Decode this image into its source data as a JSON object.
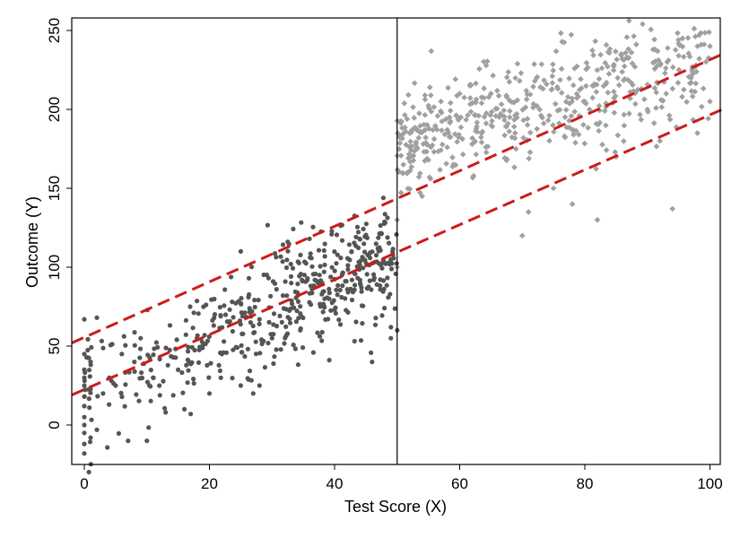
{
  "chart_data": {
    "type": "scatter",
    "title": "",
    "xlabel": "Test Score (X)",
    "ylabel": "Outcome (Y)",
    "xlim": [
      -2,
      102
    ],
    "ylim": [
      -25,
      257
    ],
    "xticks": [
      0,
      20,
      40,
      60,
      80,
      100
    ],
    "yticks": [
      0,
      50,
      100,
      150,
      200,
      250
    ],
    "grid": false,
    "legend": "none",
    "cutoff": 50,
    "colors": {
      "below_cutoff": "#555555",
      "above_cutoff": "#a0a0a0",
      "fit_lines": "#cc1a1a",
      "cutoff_line": "#000000"
    },
    "series": [
      {
        "marker": "circle",
        "color": "#555555",
        "x_range": [
          0,
          50
        ],
        "count": 500,
        "points": [
          [
            0,
            -18
          ],
          [
            0,
            -12
          ],
          [
            0,
            -5
          ],
          [
            0,
            0
          ],
          [
            0,
            5
          ],
          [
            0,
            12
          ],
          [
            0,
            18
          ],
          [
            0,
            25
          ],
          [
            0,
            30
          ],
          [
            0,
            35
          ],
          [
            0,
            45
          ],
          [
            0,
            67
          ],
          [
            1,
            -8
          ],
          [
            1,
            40
          ],
          [
            2,
            68
          ],
          [
            2,
            -3
          ],
          [
            3,
            20
          ],
          [
            4,
            30
          ],
          [
            5,
            25
          ],
          [
            6,
            45
          ],
          [
            7,
            -10
          ],
          [
            8,
            40
          ],
          [
            9,
            55
          ],
          [
            10,
            -10
          ],
          [
            11,
            30
          ],
          [
            12,
            25
          ],
          [
            13,
            8
          ],
          [
            15,
            35
          ],
          [
            16,
            10
          ],
          [
            17,
            7
          ],
          [
            18,
            55
          ],
          [
            20,
            20
          ],
          [
            22,
            45
          ],
          [
            25,
            25
          ],
          [
            25,
            110
          ],
          [
            27,
            20
          ],
          [
            28,
            25
          ],
          [
            30,
            55
          ],
          [
            33,
            102
          ],
          [
            36,
            118
          ],
          [
            38,
            90
          ],
          [
            40,
            73
          ],
          [
            44,
            118
          ],
          [
            46,
            40
          ],
          [
            49,
            55
          ],
          [
            49,
            62
          ],
          [
            50,
            60
          ]
        ]
      },
      {
        "marker": "diamond",
        "color": "#a0a0a0",
        "x_range": [
          50,
          100
        ],
        "count": 500,
        "points": [
          [
            50,
            100
          ],
          [
            50,
            130
          ],
          [
            51,
            165
          ],
          [
            52,
            185
          ],
          [
            53,
            178
          ],
          [
            54,
            145
          ],
          [
            55,
            168
          ],
          [
            57,
            205
          ],
          [
            58,
            176
          ],
          [
            60,
            210
          ],
          [
            62,
            178
          ],
          [
            65,
            210
          ],
          [
            68,
            195
          ],
          [
            70,
            120
          ],
          [
            71,
            135
          ],
          [
            72,
            218
          ],
          [
            75,
            150
          ],
          [
            78,
            140
          ],
          [
            80,
            205
          ],
          [
            82,
            130
          ],
          [
            85,
            170
          ],
          [
            86,
            232
          ],
          [
            88,
            227
          ],
          [
            90,
            200
          ],
          [
            92,
            180
          ],
          [
            93,
            210
          ],
          [
            94,
            137
          ],
          [
            95,
            234
          ],
          [
            97,
            220
          ],
          [
            98,
            185
          ],
          [
            100,
            240
          ],
          [
            100,
            205
          ]
        ]
      }
    ],
    "fit_lines": [
      {
        "style": "dashed",
        "color": "#cc1a1a",
        "x": [
          -2,
          102
        ],
        "y": [
          52,
          235
        ]
      },
      {
        "style": "dashed",
        "color": "#cc1a1a",
        "x": [
          -2,
          102
        ],
        "y": [
          19,
          200
        ]
      }
    ]
  }
}
